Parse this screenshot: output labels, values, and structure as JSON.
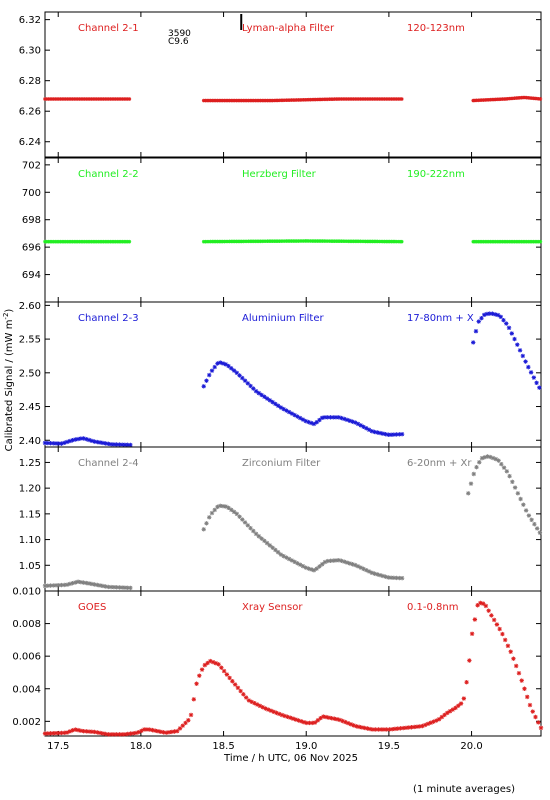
{
  "chart_data": {
    "type": "scatter",
    "x_axis": {
      "label": "Time / h UTC, 06 Nov 2025",
      "range": [
        17.42,
        20.42
      ],
      "ticks": [
        17.5,
        18.0,
        18.5,
        19.0,
        19.5,
        20.0
      ],
      "tick_labels": [
        "17.5",
        "18.0",
        "18.5",
        "19.0",
        "19.5",
        "20.0"
      ]
    },
    "y_label": "Calibrated Signal / (mW m",
    "y_label_sup": "-2",
    "y_label_end": ")",
    "footnote": "(1 minute averages)",
    "grid": false,
    "panels": [
      {
        "channel": "Channel 2-1",
        "filter": "Lyman-alpha Filter",
        "band": "120-123nm",
        "color": "#dd1f1f",
        "ylim": [
          6.23,
          6.325
        ],
        "ticks": [
          6.24,
          6.26,
          6.28,
          6.3,
          6.32
        ],
        "tick_labels": [
          "6.24",
          "6.26",
          "6.28",
          "6.30",
          "6.32"
        ],
        "extra_labels": [
          "3590",
          "C9.6"
        ],
        "marker_x": 18.61,
        "segments": [
          {
            "x": [
              17.42,
              17.94
            ],
            "y": [
              6.268,
              6.268
            ]
          },
          {
            "x": [
              18.38,
              18.8,
              19.2,
              19.58
            ],
            "y": [
              6.267,
              6.267,
              6.268,
              6.268
            ]
          },
          {
            "x": [
              20.01,
              20.2,
              20.32,
              20.42
            ],
            "y": [
              6.267,
              6.268,
              6.269,
              6.268
            ]
          }
        ]
      },
      {
        "channel": "Channel 2-2",
        "filter": "Herzberg Filter",
        "band": "190-222nm",
        "color": "#22ee22",
        "ylim": [
          692.0,
          702.5
        ],
        "ticks": [
          694,
          696,
          698,
          700,
          702
        ],
        "tick_labels": [
          "694",
          "696",
          "698",
          "700",
          "702"
        ],
        "segments": [
          {
            "x": [
              17.42,
              17.94
            ],
            "y": [
              696.4,
              696.4
            ]
          },
          {
            "x": [
              18.38,
              19.0,
              19.58
            ],
            "y": [
              696.4,
              696.45,
              696.4
            ]
          },
          {
            "x": [
              20.01,
              20.42
            ],
            "y": [
              696.4,
              696.4
            ]
          }
        ]
      },
      {
        "channel": "Channel 2-3",
        "filter": "Aluminium Filter",
        "band": "17-80nm + X",
        "color": "#1a1ad6",
        "ylim": [
          2.39,
          2.605
        ],
        "ticks": [
          2.4,
          2.45,
          2.5,
          2.55,
          2.6
        ],
        "tick_labels": [
          "2.40",
          "2.45",
          "2.50",
          "2.55",
          "2.60"
        ],
        "segments": [
          {
            "x": [
              17.42,
              17.52,
              17.6,
              17.65,
              17.72,
              17.82,
              17.94
            ],
            "y": [
              2.396,
              2.395,
              2.401,
              2.403,
              2.398,
              2.394,
              2.393
            ]
          },
          {
            "x": [
              18.38,
              18.42,
              18.47,
              18.52,
              18.58,
              18.7,
              18.85,
              19.0,
              19.05,
              19.1,
              19.2,
              19.3,
              19.4,
              19.5,
              19.58
            ],
            "y": [
              2.48,
              2.5,
              2.516,
              2.512,
              2.5,
              2.472,
              2.448,
              2.428,
              2.424,
              2.434,
              2.434,
              2.426,
              2.413,
              2.408,
              2.409
            ]
          },
          {
            "x": [
              20.01,
              20.04,
              20.08,
              20.12,
              20.17,
              20.22,
              20.28,
              20.34,
              20.4,
              20.42
            ],
            "y": [
              2.545,
              2.575,
              2.587,
              2.588,
              2.585,
              2.57,
              2.54,
              2.51,
              2.482,
              2.474
            ]
          }
        ]
      },
      {
        "channel": "Channel 2-4",
        "filter": "Zirconium Filter",
        "band": "6-20nm + Xr",
        "color": "#808080",
        "ylim": [
          1.0,
          1.28
        ],
        "ticks": [
          1.05,
          1.1,
          1.15,
          1.2,
          1.25
        ],
        "tick_labels": [
          "1.05",
          "1.10",
          "1.15",
          "1.20",
          "1.25"
        ],
        "segments": [
          {
            "x": [
              17.42,
              17.55,
              17.62,
              17.68,
              17.8,
              17.94
            ],
            "y": [
              1.01,
              1.012,
              1.018,
              1.015,
              1.008,
              1.006
            ]
          },
          {
            "x": [
              18.38,
              18.42,
              18.47,
              18.52,
              18.58,
              18.7,
              18.85,
              19.0,
              19.05,
              19.12,
              19.2,
              19.3,
              19.4,
              19.5,
              19.58
            ],
            "y": [
              1.12,
              1.148,
              1.166,
              1.164,
              1.15,
              1.11,
              1.07,
              1.045,
              1.04,
              1.058,
              1.06,
              1.05,
              1.035,
              1.026,
              1.025
            ]
          },
          {
            "x": [
              19.98,
              20.02,
              20.06,
              20.1,
              20.16,
              20.22,
              20.28,
              20.34,
              20.4,
              20.42
            ],
            "y": [
              1.19,
              1.235,
              1.258,
              1.262,
              1.255,
              1.23,
              1.19,
              1.15,
              1.12,
              1.11
            ]
          }
        ]
      },
      {
        "channel": "GOES",
        "filter": "Xray Sensor",
        "band": "0.1-0.8nm",
        "color": "#dd1f1f",
        "ylim": [
          0.0011,
          0.01
        ],
        "ticks": [
          0.002,
          0.004,
          0.006,
          0.008,
          0.01
        ],
        "tick_labels": [
          "0.002",
          "0.004",
          "0.006",
          "0.008",
          "0.010"
        ],
        "segments": [
          {
            "x": [
              17.42,
              17.55,
              17.6,
              17.65,
              17.72,
              17.8,
              17.9,
              17.98,
              18.02,
              18.05,
              18.1,
              18.15,
              18.22,
              18.3,
              18.34,
              18.38,
              18.42,
              18.47,
              18.55,
              18.65,
              18.75,
              18.85,
              19.0,
              19.05,
              19.1,
              19.2,
              19.3,
              19.4,
              19.5,
              19.6,
              19.7,
              19.8,
              19.85,
              19.9,
              19.95,
              19.98,
              20.0,
              20.04,
              20.08,
              20.12,
              20.18,
              20.24,
              20.3,
              20.36,
              20.42
            ],
            "y": [
              0.00125,
              0.0013,
              0.0015,
              0.0014,
              0.00135,
              0.0012,
              0.0012,
              0.0013,
              0.0015,
              0.0015,
              0.0014,
              0.0013,
              0.0014,
              0.0022,
              0.0045,
              0.0054,
              0.0057,
              0.0055,
              0.0045,
              0.0033,
              0.0028,
              0.0024,
              0.0019,
              0.0019,
              0.0023,
              0.0021,
              0.0017,
              0.0015,
              0.0015,
              0.0016,
              0.0017,
              0.0021,
              0.0025,
              0.0028,
              0.0032,
              0.005,
              0.0072,
              0.0093,
              0.0092,
              0.0085,
              0.0075,
              0.0062,
              0.0046,
              0.0028,
              0.0016
            ]
          }
        ]
      }
    ]
  }
}
